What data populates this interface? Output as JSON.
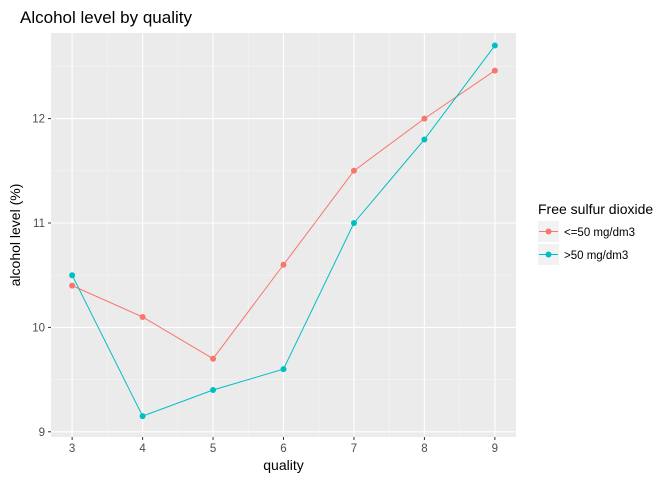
{
  "chart_data": {
    "type": "line",
    "title": "Alcohol level by quality",
    "xlabel": "quality",
    "ylabel": "alcohol level (%)",
    "x": [
      3,
      4,
      5,
      6,
      7,
      8,
      9
    ],
    "xlim": [
      2.7,
      9.3
    ],
    "ylim": [
      8.95,
      12.82
    ],
    "xticks": [
      3,
      4,
      5,
      6,
      7,
      8,
      9
    ],
    "yticks": [
      9,
      10,
      11,
      12
    ],
    "grid": true,
    "legend_title": "Free sulfur dioxide",
    "legend_position": "right",
    "series": [
      {
        "name": "<=50 mg/dm3",
        "color": "#F8766D",
        "values": [
          10.4,
          10.1,
          9.7,
          10.6,
          11.5,
          12.0,
          12.46
        ]
      },
      {
        "name": ">50 mg/dm3",
        "color": "#00BFC4",
        "values": [
          10.5,
          9.15,
          9.4,
          9.6,
          11.0,
          11.8,
          12.7
        ]
      }
    ]
  }
}
